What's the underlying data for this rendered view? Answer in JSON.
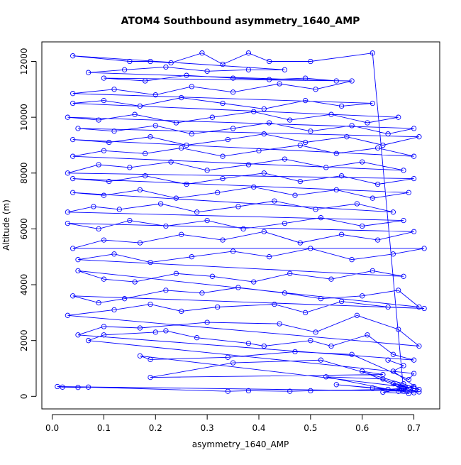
{
  "chart_data": {
    "type": "scatter",
    "title": "ATOM4 Southbound asymmetry_1640_AMP",
    "xlabel": "asymmetry_1640_AMP",
    "ylabel": "Altitude (m)",
    "xlim": [
      -0.02,
      0.75
    ],
    "ylim": [
      -450,
      12700
    ],
    "x_ticks": [
      0.0,
      0.1,
      0.2,
      0.3,
      0.4,
      0.5,
      0.6,
      0.7
    ],
    "x_tick_labels": [
      "0.0",
      "0.1",
      "0.2",
      "0.3",
      "0.4",
      "0.5",
      "0.6",
      "0.7"
    ],
    "y_ticks": [
      0,
      2000,
      4000,
      6000,
      8000,
      10000,
      12000
    ],
    "y_tick_labels": [
      "0",
      "2000",
      "4000",
      "6000",
      "8000",
      "10000",
      "12000"
    ],
    "grid": false,
    "series": [
      {
        "color": "#0000ff",
        "style": "points-and-lines",
        "points": [
          [
            0.7,
            130
          ],
          [
            0.62,
            300
          ],
          [
            0.71,
            160
          ],
          [
            0.55,
            420
          ],
          [
            0.68,
            190
          ],
          [
            0.01,
            350
          ],
          [
            0.02,
            330
          ],
          [
            0.05,
            320
          ],
          [
            0.07,
            330
          ],
          [
            0.34,
            180
          ],
          [
            0.38,
            200
          ],
          [
            0.46,
            180
          ],
          [
            0.5,
            200
          ],
          [
            0.65,
            250
          ],
          [
            0.69,
            300
          ],
          [
            0.67,
            180
          ],
          [
            0.53,
            700
          ],
          [
            0.64,
            620
          ],
          [
            0.7,
            200
          ],
          [
            0.68,
            260
          ],
          [
            0.6,
            900
          ],
          [
            0.64,
            780
          ],
          [
            0.19,
            680
          ],
          [
            0.35,
            1200
          ],
          [
            0.52,
            1300
          ],
          [
            0.68,
            450
          ],
          [
            0.7,
            300
          ],
          [
            0.17,
            1450
          ],
          [
            0.19,
            1320
          ],
          [
            0.34,
            1400
          ],
          [
            0.47,
            1600
          ],
          [
            0.58,
            1500
          ],
          [
            0.69,
            600
          ],
          [
            0.7,
            820
          ],
          [
            0.07,
            2000
          ],
          [
            0.1,
            2200
          ],
          [
            0.2,
            2300
          ],
          [
            0.22,
            2350
          ],
          [
            0.28,
            2100
          ],
          [
            0.38,
            1900
          ],
          [
            0.41,
            1800
          ],
          [
            0.5,
            2000
          ],
          [
            0.54,
            1800
          ],
          [
            0.61,
            2200
          ],
          [
            0.66,
            1500
          ],
          [
            0.7,
            1300
          ],
          [
            0.05,
            2200
          ],
          [
            0.1,
            2500
          ],
          [
            0.17,
            2450
          ],
          [
            0.3,
            2650
          ],
          [
            0.44,
            2600
          ],
          [
            0.51,
            2300
          ],
          [
            0.59,
            2900
          ],
          [
            0.67,
            2400
          ],
          [
            0.71,
            1800
          ],
          [
            0.03,
            2900
          ],
          [
            0.12,
            3100
          ],
          [
            0.19,
            3300
          ],
          [
            0.25,
            3050
          ],
          [
            0.32,
            3200
          ],
          [
            0.43,
            3300
          ],
          [
            0.49,
            3000
          ],
          [
            0.56,
            3400
          ],
          [
            0.65,
            3200
          ],
          [
            0.72,
            3150
          ],
          [
            0.04,
            3600
          ],
          [
            0.09,
            3350
          ],
          [
            0.14,
            3500
          ],
          [
            0.22,
            3800
          ],
          [
            0.29,
            3700
          ],
          [
            0.36,
            3900
          ],
          [
            0.45,
            3700
          ],
          [
            0.52,
            3500
          ],
          [
            0.6,
            3600
          ],
          [
            0.67,
            3800
          ],
          [
            0.71,
            3200
          ],
          [
            0.05,
            4500
          ],
          [
            0.1,
            4200
          ],
          [
            0.16,
            4100
          ],
          [
            0.24,
            4400
          ],
          [
            0.31,
            4300
          ],
          [
            0.39,
            4100
          ],
          [
            0.46,
            4400
          ],
          [
            0.54,
            4200
          ],
          [
            0.62,
            4500
          ],
          [
            0.68,
            4300
          ],
          [
            0.05,
            4900
          ],
          [
            0.12,
            5100
          ],
          [
            0.19,
            4800
          ],
          [
            0.27,
            5000
          ],
          [
            0.35,
            5200
          ],
          [
            0.42,
            5000
          ],
          [
            0.5,
            5300
          ],
          [
            0.58,
            4900
          ],
          [
            0.66,
            5100
          ],
          [
            0.72,
            5300
          ],
          [
            0.04,
            5300
          ],
          [
            0.1,
            5600
          ],
          [
            0.17,
            5500
          ],
          [
            0.25,
            5800
          ],
          [
            0.33,
            5600
          ],
          [
            0.41,
            5900
          ],
          [
            0.48,
            5500
          ],
          [
            0.56,
            5800
          ],
          [
            0.63,
            5600
          ],
          [
            0.7,
            5900
          ],
          [
            0.03,
            6200
          ],
          [
            0.09,
            6000
          ],
          [
            0.15,
            6300
          ],
          [
            0.22,
            6100
          ],
          [
            0.3,
            6300
          ],
          [
            0.37,
            6000
          ],
          [
            0.45,
            6200
          ],
          [
            0.52,
            6400
          ],
          [
            0.6,
            6100
          ],
          [
            0.68,
            6300
          ],
          [
            0.03,
            6600
          ],
          [
            0.08,
            6800
          ],
          [
            0.13,
            6700
          ],
          [
            0.21,
            6900
          ],
          [
            0.28,
            6600
          ],
          [
            0.36,
            6800
          ],
          [
            0.43,
            7000
          ],
          [
            0.51,
            6700
          ],
          [
            0.59,
            6900
          ],
          [
            0.66,
            6600
          ],
          [
            0.04,
            7300
          ],
          [
            0.1,
            7200
          ],
          [
            0.17,
            7400
          ],
          [
            0.24,
            7100
          ],
          [
            0.32,
            7300
          ],
          [
            0.39,
            7500
          ],
          [
            0.47,
            7200
          ],
          [
            0.55,
            7400
          ],
          [
            0.62,
            7100
          ],
          [
            0.69,
            7300
          ],
          [
            0.04,
            7800
          ],
          [
            0.11,
            7700
          ],
          [
            0.18,
            7900
          ],
          [
            0.26,
            7600
          ],
          [
            0.33,
            7800
          ],
          [
            0.41,
            8000
          ],
          [
            0.48,
            7700
          ],
          [
            0.56,
            7900
          ],
          [
            0.63,
            7600
          ],
          [
            0.7,
            7800
          ],
          [
            0.03,
            8000
          ],
          [
            0.09,
            8300
          ],
          [
            0.15,
            8200
          ],
          [
            0.23,
            8400
          ],
          [
            0.3,
            8100
          ],
          [
            0.38,
            8300
          ],
          [
            0.45,
            8500
          ],
          [
            0.53,
            8200
          ],
          [
            0.6,
            8400
          ],
          [
            0.68,
            8100
          ],
          [
            0.04,
            8600
          ],
          [
            0.1,
            8800
          ],
          [
            0.18,
            8700
          ],
          [
            0.25,
            8900
          ],
          [
            0.33,
            8600
          ],
          [
            0.4,
            8800
          ],
          [
            0.48,
            9000
          ],
          [
            0.55,
            8700
          ],
          [
            0.63,
            8900
          ],
          [
            0.7,
            8600
          ],
          [
            0.04,
            9200
          ],
          [
            0.11,
            9100
          ],
          [
            0.19,
            9300
          ],
          [
            0.26,
            9000
          ],
          [
            0.34,
            9200
          ],
          [
            0.41,
            9400
          ],
          [
            0.49,
            9100
          ],
          [
            0.57,
            9300
          ],
          [
            0.64,
            9000
          ],
          [
            0.71,
            9300
          ],
          [
            0.05,
            9600
          ],
          [
            0.12,
            9500
          ],
          [
            0.2,
            9700
          ],
          [
            0.27,
            9400
          ],
          [
            0.35,
            9600
          ],
          [
            0.42,
            9800
          ],
          [
            0.5,
            9500
          ],
          [
            0.58,
            9700
          ],
          [
            0.65,
            9400
          ],
          [
            0.7,
            9600
          ],
          [
            0.03,
            10000
          ],
          [
            0.09,
            9900
          ],
          [
            0.16,
            10100
          ],
          [
            0.24,
            9800
          ],
          [
            0.31,
            10000
          ],
          [
            0.39,
            10200
          ],
          [
            0.46,
            9900
          ],
          [
            0.54,
            10100
          ],
          [
            0.61,
            9800
          ],
          [
            0.67,
            10000
          ],
          [
            0.04,
            10500
          ],
          [
            0.1,
            10600
          ],
          [
            0.17,
            10400
          ],
          [
            0.25,
            10700
          ],
          [
            0.33,
            10500
          ],
          [
            0.41,
            10300
          ],
          [
            0.49,
            10600
          ],
          [
            0.56,
            10400
          ],
          [
            0.62,
            10500
          ],
          [
            0.04,
            10850
          ],
          [
            0.12,
            11000
          ],
          [
            0.2,
            10800
          ],
          [
            0.27,
            11100
          ],
          [
            0.35,
            10900
          ],
          [
            0.44,
            11200
          ],
          [
            0.51,
            11000
          ],
          [
            0.58,
            11300
          ],
          [
            0.1,
            11400
          ],
          [
            0.18,
            11300
          ],
          [
            0.26,
            11500
          ],
          [
            0.35,
            11400
          ],
          [
            0.42,
            11350
          ],
          [
            0.49,
            11400
          ],
          [
            0.55,
            11300
          ],
          [
            0.07,
            11600
          ],
          [
            0.14,
            11700
          ],
          [
            0.22,
            11800
          ],
          [
            0.3,
            11650
          ],
          [
            0.38,
            11700
          ],
          [
            0.45,
            11700
          ],
          [
            0.04,
            12200
          ],
          [
            0.15,
            12000
          ],
          [
            0.19,
            12000
          ],
          [
            0.23,
            11950
          ],
          [
            0.29,
            12300
          ],
          [
            0.33,
            11900
          ],
          [
            0.38,
            12300
          ],
          [
            0.42,
            12000
          ],
          [
            0.5,
            12000
          ],
          [
            0.62,
            12300
          ],
          [
            0.68,
            200
          ],
          [
            0.66,
            450
          ],
          [
            0.7,
            350
          ],
          [
            0.64,
            150
          ],
          [
            0.69,
            100
          ],
          [
            0.67,
            400
          ],
          [
            0.71,
            250
          ],
          [
            0.66,
            900
          ],
          [
            0.68,
            1100
          ],
          [
            0.65,
            1300
          ]
        ]
      }
    ]
  }
}
